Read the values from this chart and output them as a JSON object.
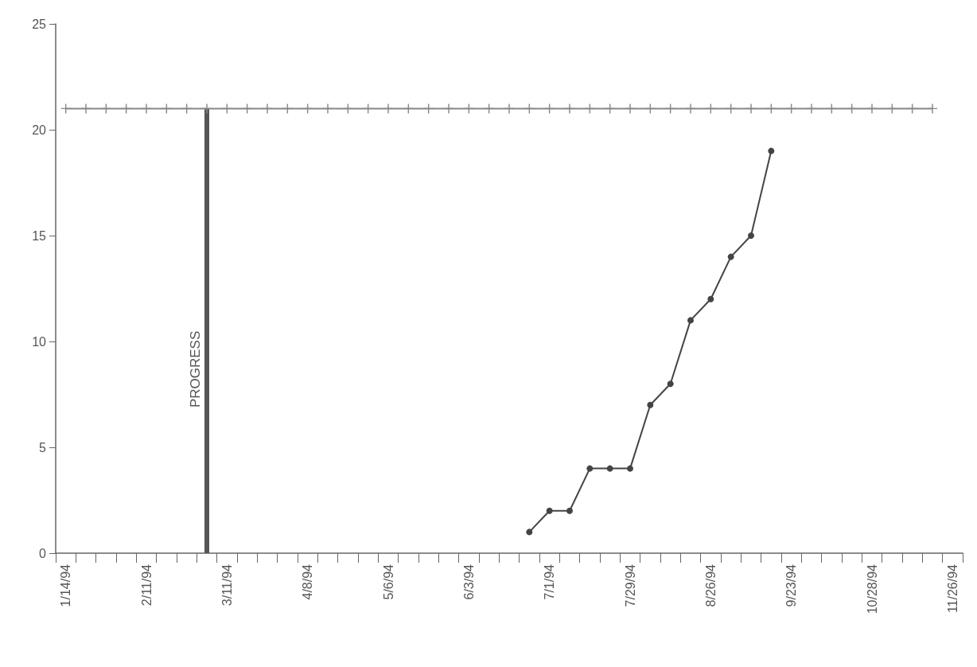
{
  "chart_data": {
    "type": "line",
    "categories": [
      "1/14/94",
      null,
      null,
      null,
      "2/11/94",
      null,
      null,
      null,
      "3/11/94",
      null,
      null,
      null,
      "4/8/94",
      null,
      null,
      null,
      "5/6/94",
      null,
      null,
      null,
      "6/3/94",
      null,
      null,
      null,
      "7/1/94",
      null,
      null,
      null,
      "7/29/94",
      null,
      null,
      null,
      "8/26/94",
      null,
      null,
      null,
      "9/23/94",
      null,
      null,
      null,
      "10/28/94",
      null,
      null,
      null,
      "11/26/94"
    ],
    "series": [
      {
        "color": "#444444",
        "values": [
          null,
          null,
          null,
          null,
          null,
          null,
          null,
          null,
          null,
          null,
          null,
          null,
          null,
          null,
          null,
          null,
          null,
          null,
          null,
          null,
          null,
          null,
          null,
          1,
          2,
          2,
          4,
          4,
          4,
          7,
          8,
          11,
          12,
          14,
          15,
          19,
          null,
          null,
          null,
          null,
          null,
          null,
          null,
          null,
          null
        ]
      },
      {
        "color": "#888888",
        "marker": "cross",
        "values": [
          21,
          21,
          21,
          21,
          21,
          21,
          21,
          21,
          21,
          21,
          21,
          21,
          21,
          21,
          21,
          21,
          21,
          21,
          21,
          21,
          21,
          21,
          21,
          21,
          21,
          21,
          21,
          21,
          21,
          21,
          21,
          21,
          21,
          21,
          21,
          21,
          21,
          21,
          21,
          21,
          21,
          21,
          21,
          21,
          null
        ]
      },
      {
        "name": "PROGRESS",
        "type": "bar",
        "color": "#555555",
        "values": [
          null,
          null,
          null,
          null,
          null,
          null,
          null,
          21,
          null,
          null,
          null,
          null,
          null,
          null,
          null,
          null,
          null,
          null,
          null,
          null,
          null,
          null,
          null,
          null,
          null,
          null,
          null,
          null,
          null,
          null,
          null,
          null,
          null,
          null,
          null,
          null,
          null,
          null,
          null,
          null,
          null,
          null,
          null,
          null,
          null
        ]
      }
    ],
    "ylim": [
      0,
      25
    ],
    "yticks": [
      0,
      5,
      10,
      15,
      20,
      25
    ],
    "grid": false,
    "marker": "circle",
    "line_style": "solid"
  }
}
